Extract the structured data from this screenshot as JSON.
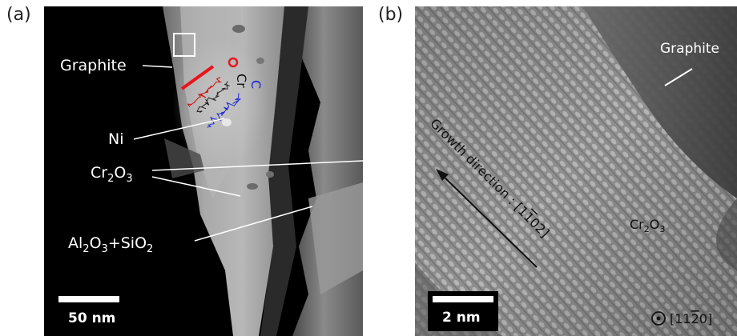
{
  "panel_a": {
    "letter": "(a)",
    "graphite": "Graphite",
    "c_label": "C",
    "ni": "Ni",
    "cr2o3": {
      "base1": "Cr",
      "sub1": "2",
      "base2": "O",
      "sub2": "3"
    },
    "al_si": {
      "a": "Al",
      "a_sub": "2",
      "b": "O",
      "b_sub": "3",
      "plus": "+SiO",
      "c_sub": "2"
    },
    "scale_bar": "50 nm"
  },
  "panel_b": {
    "letter": "(b)",
    "graphite": "Graphite",
    "cr2o3": {
      "base1": "Cr",
      "sub1": "2",
      "base2": "O",
      "sub2": "3"
    },
    "growth": "Growth direction : [1",
    "growth_bar": "1",
    "growth_tail": "02]",
    "scale_bar": "2 nm",
    "zone_axis": "[11",
    "zone_bar": "2",
    "zone_tail": "0]"
  },
  "colors": {
    "red_line": "#e8141c",
    "blue": "#1a28d8",
    "background": "#000000"
  }
}
